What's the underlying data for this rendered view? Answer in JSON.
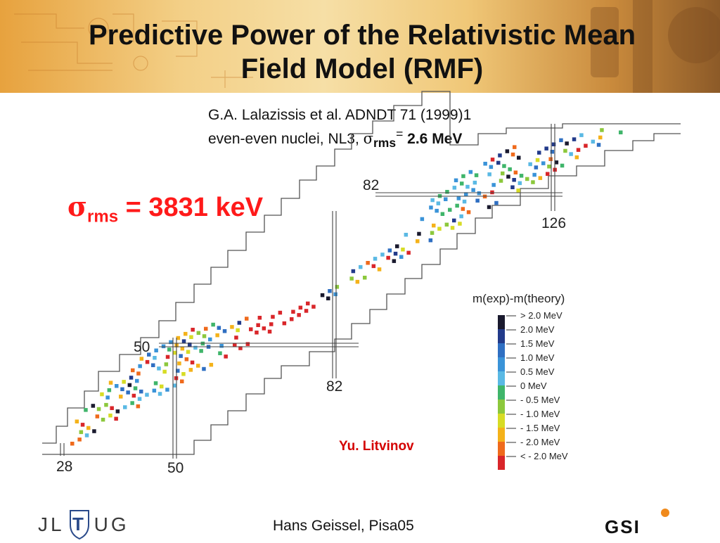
{
  "slide": {
    "title_line1": "Predictive Power of the Relativistic Mean",
    "title_line2": "Field  Model  (RMF)",
    "reference_line1": "G.A. Lalazissis et al. ADNDT 71 (1999)1",
    "reference_line2_prefix": "even-even nuclei, NL3, ",
    "reference_sigma": "σ",
    "reference_sub": "rms",
    "reference_eq": "=",
    "reference_value": " 2.6 MeV",
    "big_sigma": "σ",
    "big_sub": "rms",
    "big_value": " = 3831 keV",
    "credit": "Yu. Litvinov",
    "footer_author": "Hans Geissel,  Pisa05",
    "logo_left_letters": [
      "J",
      "L",
      "U",
      "G"
    ],
    "logo_left_mark": "T",
    "logo_right": "GSI"
  },
  "diagram": {
    "magic_labels": {
      "z82_top": "82",
      "n126": "126",
      "z50": "50",
      "n82": "82",
      "z28": "28",
      "n50": "50"
    },
    "legend": {
      "title": "m(exp)-m(theory)",
      "entries": [
        {
          "label": "> 2.0 MeV",
          "color": "#1a1a2e"
        },
        {
          "label": "2.0 MeV",
          "color": "#223a8a"
        },
        {
          "label": "1.5 MeV",
          "color": "#2f6fc2"
        },
        {
          "label": "1.0 MeV",
          "color": "#3a93d8"
        },
        {
          "label": "0.5 MeV",
          "color": "#5ab9e4"
        },
        {
          "label": "0 MeV",
          "color": "#3fb56a"
        },
        {
          "label": "- 0.5 MeV",
          "color": "#8cc83c"
        },
        {
          "label": "- 1.0 MeV",
          "color": "#d7dc25"
        },
        {
          "label": "- 1.5 MeV",
          "color": "#f4b21a"
        },
        {
          "label": "- 2.0 MeV",
          "color": "#ef6a1c"
        },
        {
          "label": "< - 2.0 MeV",
          "color": "#d9262a"
        }
      ]
    }
  }
}
